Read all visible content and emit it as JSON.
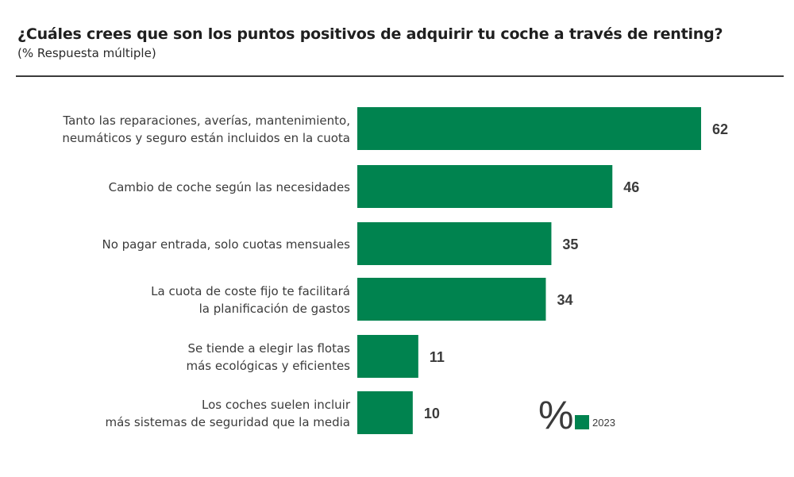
{
  "header": {
    "title": "¿Cuáles crees que son los puntos positivos de adquirir tu coche a través de renting?",
    "subtitle": "(% Respuesta múltiple)"
  },
  "chart_data": {
    "type": "bar",
    "orientation": "horizontal",
    "title": "¿Cuáles crees que son los puntos positivos de adquirir tu coche a través de renting?",
    "subtitle": "(% Respuesta múltiple)",
    "xlabel": "",
    "ylabel": "",
    "xlim": [
      0,
      62
    ],
    "grid": false,
    "categories": [
      [
        "Tanto las reparaciones, averías, mantenimiento,",
        "neumáticos y seguro están incluidos en la cuota"
      ],
      [
        "Cambio de coche según las necesidades"
      ],
      [
        "No pagar entrada, solo cuotas mensuales"
      ],
      [
        "La cuota de coste fijo te facilitará",
        "la planificación de gastos"
      ],
      [
        "Se tiende a elegir las flotas",
        "más ecológicas y eficientes"
      ],
      [
        "Los coches suelen incluir",
        "más sistemas de seguridad que la media"
      ]
    ],
    "series": [
      {
        "name": "2023",
        "color": "#00834f",
        "values": [
          62,
          46,
          35,
          34,
          11,
          10
        ]
      }
    ],
    "legend": {
      "unit_symbol": "%",
      "entries": [
        "2023"
      ],
      "placement": "bottom-right"
    }
  }
}
